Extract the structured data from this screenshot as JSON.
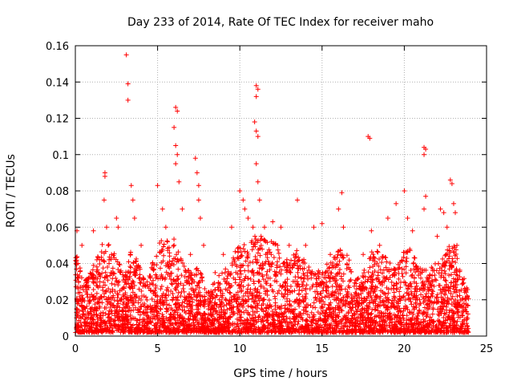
{
  "chart_data": {
    "type": "scatter",
    "title": "Day 233 of 2014, Rate Of TEC Index for receiver maho",
    "xlabel": "GPS time / hours",
    "ylabel": "ROTI / TECUs",
    "xlim": [
      0,
      25
    ],
    "ylim": [
      0,
      0.16
    ],
    "xticks": [
      0,
      5,
      10,
      15,
      20,
      25
    ],
    "yticks": [
      0,
      0.02,
      0.04,
      0.06,
      0.08,
      0.1,
      0.12,
      0.14,
      0.16
    ],
    "xtick_labels": [
      "0",
      "5",
      "10",
      "15",
      "20",
      "25"
    ],
    "ytick_labels": [
      "0",
      "0.02",
      "0.04",
      "0.06",
      "0.08",
      "0.1",
      "0.12",
      "0.14",
      "0.16"
    ],
    "grid": true,
    "marker": "+",
    "marker_color": "#ff0000",
    "series": [
      {
        "name": "ROTI",
        "points": [
          [
            0.1,
            0.058
          ],
          [
            0.15,
            0.04
          ],
          [
            0.2,
            0.03
          ],
          [
            0.3,
            0.02
          ],
          [
            0.4,
            0.05
          ],
          [
            0.5,
            0.012
          ],
          [
            1.1,
            0.058
          ],
          [
            1.6,
            0.042
          ],
          [
            1.8,
            0.09
          ],
          [
            1.8,
            0.088
          ],
          [
            1.75,
            0.075
          ],
          [
            1.9,
            0.06
          ],
          [
            2.0,
            0.05
          ],
          [
            2.2,
            0.045
          ],
          [
            2.5,
            0.065
          ],
          [
            2.6,
            0.06
          ],
          [
            3.1,
            0.155
          ],
          [
            3.2,
            0.139
          ],
          [
            3.2,
            0.13
          ],
          [
            3.4,
            0.083
          ],
          [
            3.5,
            0.075
          ],
          [
            3.6,
            0.065
          ],
          [
            4.0,
            0.05
          ],
          [
            5.0,
            0.083
          ],
          [
            5.3,
            0.07
          ],
          [
            5.5,
            0.06
          ],
          [
            6.1,
            0.126
          ],
          [
            6.2,
            0.124
          ],
          [
            6.0,
            0.115
          ],
          [
            6.1,
            0.105
          ],
          [
            6.2,
            0.1
          ],
          [
            6.1,
            0.095
          ],
          [
            6.3,
            0.085
          ],
          [
            6.5,
            0.07
          ],
          [
            7.0,
            0.045
          ],
          [
            7.3,
            0.098
          ],
          [
            7.4,
            0.09
          ],
          [
            7.5,
            0.083
          ],
          [
            7.5,
            0.075
          ],
          [
            7.6,
            0.065
          ],
          [
            7.8,
            0.05
          ],
          [
            8.5,
            0.035
          ],
          [
            9.0,
            0.045
          ],
          [
            9.5,
            0.06
          ],
          [
            10.0,
            0.08
          ],
          [
            10.2,
            0.075
          ],
          [
            10.3,
            0.07
          ],
          [
            10.5,
            0.065
          ],
          [
            10.8,
            0.06
          ],
          [
            11.0,
            0.138
          ],
          [
            11.1,
            0.136
          ],
          [
            11.0,
            0.132
          ],
          [
            10.9,
            0.118
          ],
          [
            11.0,
            0.113
          ],
          [
            11.1,
            0.11
          ],
          [
            11.0,
            0.095
          ],
          [
            11.1,
            0.085
          ],
          [
            11.2,
            0.075
          ],
          [
            11.5,
            0.06
          ],
          [
            12.0,
            0.063
          ],
          [
            12.5,
            0.06
          ],
          [
            13.0,
            0.05
          ],
          [
            13.5,
            0.075
          ],
          [
            14.0,
            0.05
          ],
          [
            14.5,
            0.06
          ],
          [
            15.0,
            0.062
          ],
          [
            15.5,
            0.045
          ],
          [
            16.0,
            0.07
          ],
          [
            16.2,
            0.079
          ],
          [
            16.3,
            0.06
          ],
          [
            17.5,
            0.045
          ],
          [
            17.8,
            0.11
          ],
          [
            17.9,
            0.109
          ],
          [
            18.0,
            0.058
          ],
          [
            18.5,
            0.05
          ],
          [
            19.0,
            0.065
          ],
          [
            19.5,
            0.073
          ],
          [
            20.0,
            0.08
          ],
          [
            20.2,
            0.065
          ],
          [
            20.5,
            0.058
          ],
          [
            21.2,
            0.104
          ],
          [
            21.2,
            0.1
          ],
          [
            21.3,
            0.103
          ],
          [
            21.3,
            0.077
          ],
          [
            21.2,
            0.07
          ],
          [
            21.5,
            0.03
          ],
          [
            22.0,
            0.055
          ],
          [
            22.2,
            0.07
          ],
          [
            22.4,
            0.068
          ],
          [
            22.6,
            0.06
          ],
          [
            22.8,
            0.086
          ],
          [
            22.9,
            0.084
          ],
          [
            23.0,
            0.073
          ],
          [
            23.1,
            0.068
          ],
          [
            23.2,
            0.05
          ],
          [
            23.5,
            0.02
          ]
        ],
        "activity_profile": {
          "time": [
            0,
            0.5,
            1,
            1.5,
            1.8,
            2.2,
            2.6,
            3.0,
            3.4,
            3.8,
            4.2,
            4.6,
            5.0,
            5.5,
            6.0,
            6.5,
            7.0,
            7.5,
            8.0,
            8.5,
            9.0,
            9.5,
            10.0,
            10.5,
            11.0,
            11.5,
            12.0,
            12.5,
            13.0,
            13.5,
            14.0,
            14.5,
            15.0,
            15.5,
            16.0,
            16.5,
            17.0,
            17.5,
            18.0,
            18.5,
            19.0,
            19.5,
            20.0,
            20.5,
            21.0,
            21.5,
            22.0,
            22.5,
            23.0,
            23.5,
            23.9
          ],
          "roti_envelope": [
            0.04,
            0.025,
            0.03,
            0.04,
            0.045,
            0.042,
            0.035,
            0.03,
            0.04,
            0.035,
            0.025,
            0.03,
            0.045,
            0.05,
            0.045,
            0.035,
            0.03,
            0.032,
            0.02,
            0.025,
            0.03,
            0.035,
            0.045,
            0.04,
            0.05,
            0.045,
            0.045,
            0.04,
            0.035,
            0.04,
            0.035,
            0.03,
            0.03,
            0.035,
            0.045,
            0.04,
            0.025,
            0.03,
            0.04,
            0.04,
            0.035,
            0.03,
            0.04,
            0.04,
            0.03,
            0.03,
            0.035,
            0.04,
            0.045,
            0.03,
            0.02
          ]
        }
      }
    ]
  }
}
